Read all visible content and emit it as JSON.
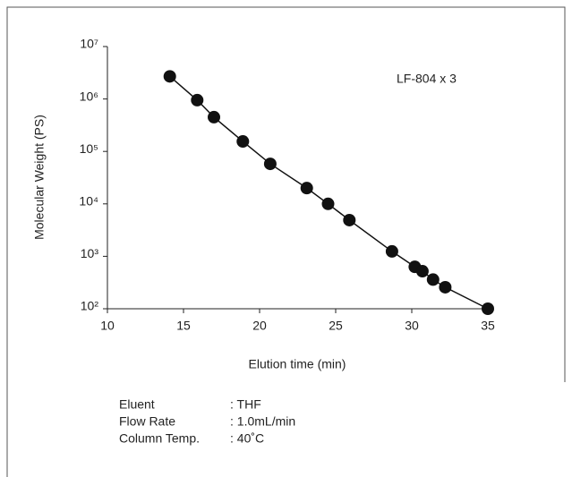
{
  "chart_data": {
    "type": "line",
    "annotation": "LF-804 x 3",
    "xlabel": "Elution time (min)",
    "ylabel": "Molecular Weight (PS)",
    "x": [
      14.1,
      15.9,
      17.0,
      18.9,
      20.7,
      23.1,
      24.5,
      25.9,
      28.7,
      30.2,
      30.7,
      31.4,
      32.2,
      35.0
    ],
    "series": [
      {
        "name": "LF-804 x 3",
        "color": "#111111",
        "values": [
          2700000,
          950000,
          450000,
          155000,
          58000,
          20000,
          10000,
          4900,
          1240,
          630,
          520,
          360,
          257,
          100
        ]
      }
    ],
    "xlim": [
      10,
      35
    ],
    "xticks": [
      10,
      15,
      20,
      25,
      30,
      35
    ],
    "ylim": [
      100,
      10000000
    ],
    "log_y": true,
    "yticks": [
      {
        "value": 100,
        "label": "10²"
      },
      {
        "value": 1000,
        "label": "10³"
      },
      {
        "value": 10000,
        "label": "10⁴"
      },
      {
        "value": 100000,
        "label": "10⁵"
      },
      {
        "value": 1000000,
        "label": "10⁶"
      },
      {
        "value": 10000000,
        "label": "10⁷"
      }
    ],
    "notes": [
      {
        "label": "Eluent",
        "value": ": THF"
      },
      {
        "label": "Flow Rate",
        "value": ": 1.0mL/min"
      },
      {
        "label": "Column Temp.",
        "value": ": 40˚C"
      }
    ]
  }
}
